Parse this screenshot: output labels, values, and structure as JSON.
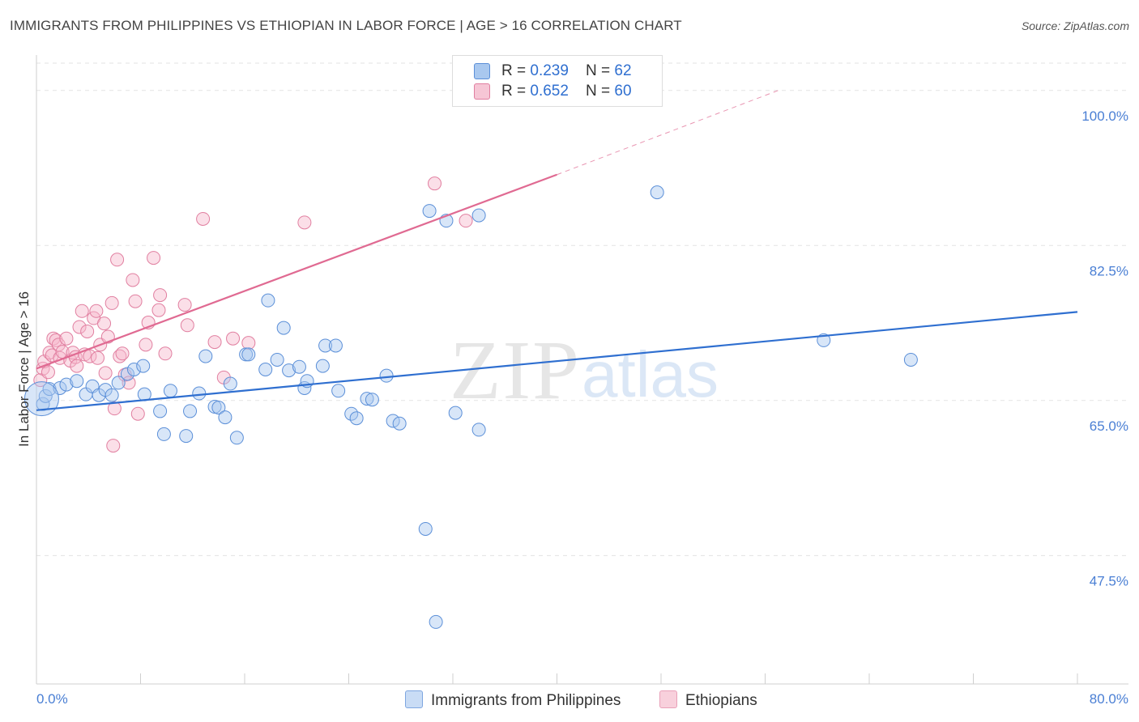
{
  "title": "IMMIGRANTS FROM PHILIPPINES VS ETHIOPIAN IN LABOR FORCE | AGE > 16 CORRELATION CHART",
  "source": "Source: ZipAtlas.com",
  "watermark": {
    "zip": "ZIP",
    "atlas": "atlas"
  },
  "legend": {
    "items": [
      {
        "r_label": "R = ",
        "r_value": "0.239",
        "n_label": "N = ",
        "n_value": "62"
      },
      {
        "r_label": "R = ",
        "r_value": "0.652",
        "n_label": "N = ",
        "n_value": "60"
      }
    ]
  },
  "bottom_legend": [
    "Immigrants from Philippines",
    "Ethiopians"
  ],
  "colors": {
    "blue_fill": "#a9c8ef",
    "blue_stroke": "#5b8fd8",
    "blue_line": "#2f6fd0",
    "pink_fill": "#f6b9cb",
    "pink_stroke": "#e17fa0",
    "pink_line": "#e06a92",
    "grid": "#e3e3e3",
    "tick_text": "#4a7fd4"
  },
  "chart_data": {
    "type": "scatter",
    "title": "IMMIGRANTS FROM PHILIPPINES VS ETHIOPIAN IN LABOR FORCE | AGE > 16 CORRELATION CHART",
    "xlabel": "",
    "ylabel": "In Labor Force | Age > 16",
    "xlim": [
      0,
      80
    ],
    "ylim": [
      33.0,
      104.0
    ],
    "x_tick_labels": [
      {
        "value": 0,
        "label": "0.0%"
      },
      {
        "value": 80,
        "label": "80.0%"
      }
    ],
    "y_ticks": [
      {
        "value": 47.5,
        "label": "47.5%"
      },
      {
        "value": 65.0,
        "label": "65.0%"
      },
      {
        "value": 82.5,
        "label": "82.5%"
      },
      {
        "value": 100.0,
        "label": "100.0%"
      }
    ],
    "grid": true,
    "series": [
      {
        "name": "Immigrants from Philippines",
        "color": "blue",
        "trend": {
          "x": [
            0,
            80
          ],
          "y": [
            63.9,
            75.0
          ],
          "dashed_to": null
        },
        "points": [
          [
            0.5,
            64.6
          ],
          [
            0.7,
            65.5
          ],
          [
            1.0,
            66.3
          ],
          [
            1.8,
            66.4
          ],
          [
            2.3,
            66.8
          ],
          [
            3.1,
            67.2
          ],
          [
            3.8,
            65.7
          ],
          [
            4.3,
            66.6
          ],
          [
            4.8,
            65.6
          ],
          [
            5.3,
            66.2
          ],
          [
            5.8,
            65.6
          ],
          [
            6.3,
            67.0
          ],
          [
            7.0,
            68.0
          ],
          [
            7.5,
            68.5
          ],
          [
            8.2,
            68.9
          ],
          [
            8.3,
            65.7
          ],
          [
            9.5,
            63.8
          ],
          [
            9.8,
            61.2
          ],
          [
            10.3,
            66.1
          ],
          [
            11.5,
            61.0
          ],
          [
            11.8,
            63.8
          ],
          [
            12.5,
            65.8
          ],
          [
            13.0,
            70.0
          ],
          [
            13.7,
            64.3
          ],
          [
            14.0,
            64.2
          ],
          [
            14.5,
            63.1
          ],
          [
            14.9,
            66.9
          ],
          [
            15.4,
            60.8
          ],
          [
            16.1,
            70.2
          ],
          [
            16.3,
            70.2
          ],
          [
            17.6,
            68.5
          ],
          [
            17.8,
            76.3
          ],
          [
            18.5,
            69.6
          ],
          [
            19.0,
            73.2
          ],
          [
            19.4,
            68.4
          ],
          [
            20.2,
            68.8
          ],
          [
            20.6,
            66.4
          ],
          [
            20.8,
            67.2
          ],
          [
            22.0,
            68.9
          ],
          [
            22.2,
            71.2
          ],
          [
            23.0,
            71.2
          ],
          [
            23.2,
            66.1
          ],
          [
            24.2,
            63.5
          ],
          [
            24.6,
            63.0
          ],
          [
            25.4,
            65.2
          ],
          [
            25.8,
            65.1
          ],
          [
            26.9,
            67.8
          ],
          [
            27.4,
            62.7
          ],
          [
            27.9,
            62.4
          ],
          [
            29.9,
            50.5
          ],
          [
            30.2,
            86.4
          ],
          [
            30.7,
            40.0
          ],
          [
            31.5,
            85.3
          ],
          [
            32.2,
            63.6
          ],
          [
            34.0,
            85.9
          ],
          [
            34.0,
            61.7
          ],
          [
            47.7,
            88.5
          ],
          [
            60.5,
            71.8
          ],
          [
            67.2,
            69.6
          ]
        ],
        "large_points": [
          [
            0.4,
            65.2
          ]
        ]
      },
      {
        "name": "Ethiopians",
        "color": "pink",
        "trend": {
          "x": [
            0,
            40
          ],
          "y": [
            68.6,
            90.5
          ],
          "dashed_to": [
            57,
            100.0
          ]
        },
        "points": [
          [
            0.3,
            67.3
          ],
          [
            0.5,
            68.6
          ],
          [
            0.6,
            69.4
          ],
          [
            0.9,
            68.2
          ],
          [
            1.0,
            70.4
          ],
          [
            1.2,
            70.1
          ],
          [
            1.3,
            72.0
          ],
          [
            1.5,
            71.8
          ],
          [
            1.7,
            71.3
          ],
          [
            1.8,
            69.8
          ],
          [
            2.0,
            70.5
          ],
          [
            2.3,
            72.0
          ],
          [
            2.6,
            69.5
          ],
          [
            2.8,
            70.4
          ],
          [
            3.0,
            69.9
          ],
          [
            3.1,
            68.9
          ],
          [
            3.3,
            73.3
          ],
          [
            3.5,
            75.1
          ],
          [
            3.7,
            70.2
          ],
          [
            3.9,
            72.8
          ],
          [
            4.1,
            70.0
          ],
          [
            4.4,
            74.3
          ],
          [
            4.6,
            75.1
          ],
          [
            4.7,
            69.8
          ],
          [
            4.9,
            71.3
          ],
          [
            5.2,
            73.7
          ],
          [
            5.3,
            68.1
          ],
          [
            5.5,
            72.2
          ],
          [
            5.8,
            76.0
          ],
          [
            5.9,
            59.9
          ],
          [
            6.0,
            64.1
          ],
          [
            6.2,
            80.9
          ],
          [
            6.4,
            70.0
          ],
          [
            6.6,
            70.3
          ],
          [
            6.8,
            67.9
          ],
          [
            7.1,
            67.0
          ],
          [
            7.4,
            78.6
          ],
          [
            7.6,
            76.2
          ],
          [
            7.8,
            63.5
          ],
          [
            8.4,
            71.3
          ],
          [
            8.6,
            73.8
          ],
          [
            9.0,
            81.1
          ],
          [
            9.4,
            75.2
          ],
          [
            9.5,
            76.9
          ],
          [
            9.9,
            70.3
          ],
          [
            11.4,
            75.8
          ],
          [
            11.6,
            73.5
          ],
          [
            12.8,
            85.5
          ],
          [
            13.7,
            71.6
          ],
          [
            14.4,
            67.6
          ],
          [
            15.1,
            72.0
          ],
          [
            16.3,
            71.5
          ],
          [
            20.6,
            85.1
          ],
          [
            30.6,
            89.5
          ],
          [
            33.0,
            85.3
          ]
        ],
        "large_points": []
      }
    ]
  }
}
